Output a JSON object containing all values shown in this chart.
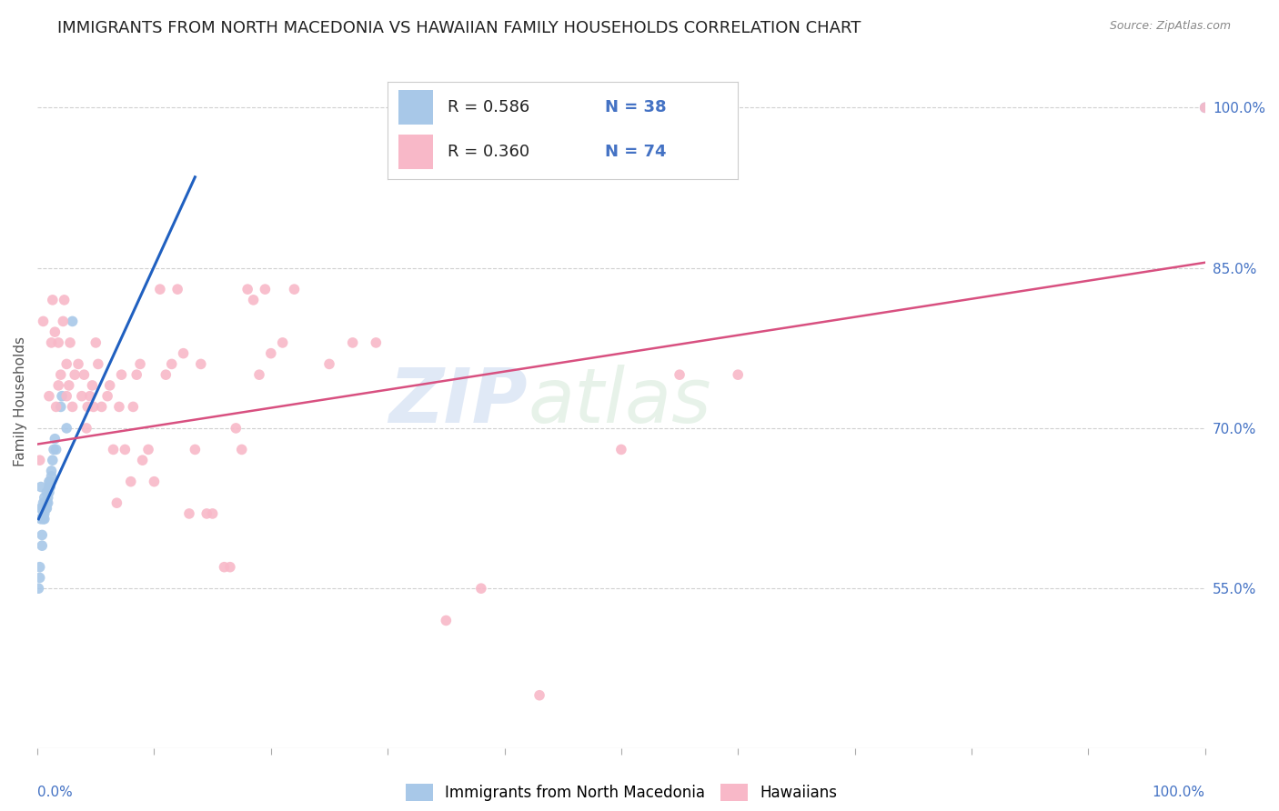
{
  "title": "IMMIGRANTS FROM NORTH MACEDONIA VS HAWAIIAN FAMILY HOUSEHOLDS CORRELATION CHART",
  "source": "Source: ZipAtlas.com",
  "ylabel": "Family Households",
  "ylabel_right_labels": [
    "100.0%",
    "85.0%",
    "70.0%",
    "55.0%"
  ],
  "ylabel_right_positions": [
    1.0,
    0.85,
    0.7,
    0.55
  ],
  "watermark_zip": "ZIP",
  "watermark_atlas": "atlas",
  "legend_blue_R": "0.586",
  "legend_blue_N": "38",
  "legend_pink_R": "0.360",
  "legend_pink_N": "74",
  "legend_label_blue": "Immigrants from North Macedonia",
  "legend_label_pink": "Hawaiians",
  "blue_scatter_color": "#a8c8e8",
  "blue_line_color": "#2060c0",
  "pink_scatter_color": "#f8b8c8",
  "pink_line_color": "#d85080",
  "text_color_blue": "#4472c4",
  "text_color_dark": "#222222",
  "grid_color_h": "#d0d0d0",
  "background_color": "#ffffff",
  "blue_scatter_x": [
    0.001,
    0.002,
    0.002,
    0.003,
    0.003,
    0.003,
    0.004,
    0.004,
    0.005,
    0.005,
    0.005,
    0.005,
    0.006,
    0.006,
    0.006,
    0.007,
    0.007,
    0.008,
    0.008,
    0.008,
    0.009,
    0.009,
    0.01,
    0.01,
    0.01,
    0.011,
    0.011,
    0.012,
    0.012,
    0.013,
    0.014,
    0.015,
    0.016,
    0.02,
    0.021,
    0.025,
    0.03,
    1.0
  ],
  "blue_scatter_y": [
    0.55,
    0.56,
    0.57,
    0.615,
    0.625,
    0.645,
    0.59,
    0.6,
    0.615,
    0.62,
    0.625,
    0.63,
    0.615,
    0.62,
    0.635,
    0.625,
    0.63,
    0.625,
    0.63,
    0.64,
    0.63,
    0.635,
    0.64,
    0.645,
    0.65,
    0.645,
    0.65,
    0.655,
    0.66,
    0.67,
    0.68,
    0.69,
    0.68,
    0.72,
    0.73,
    0.7,
    0.8,
    1.0
  ],
  "pink_scatter_x": [
    0.002,
    0.005,
    0.01,
    0.012,
    0.013,
    0.015,
    0.016,
    0.018,
    0.018,
    0.02,
    0.022,
    0.023,
    0.025,
    0.025,
    0.027,
    0.028,
    0.03,
    0.032,
    0.035,
    0.038,
    0.04,
    0.042,
    0.043,
    0.045,
    0.047,
    0.048,
    0.05,
    0.052,
    0.055,
    0.06,
    0.062,
    0.065,
    0.068,
    0.07,
    0.072,
    0.075,
    0.08,
    0.082,
    0.085,
    0.088,
    0.09,
    0.095,
    0.1,
    0.105,
    0.11,
    0.115,
    0.12,
    0.125,
    0.13,
    0.135,
    0.14,
    0.145,
    0.15,
    0.16,
    0.165,
    0.17,
    0.175,
    0.18,
    0.185,
    0.19,
    0.195,
    0.2,
    0.21,
    0.22,
    0.25,
    0.27,
    0.29,
    0.35,
    0.38,
    0.43,
    0.5,
    0.55,
    0.6,
    1.0
  ],
  "pink_scatter_y": [
    0.67,
    0.8,
    0.73,
    0.78,
    0.82,
    0.79,
    0.72,
    0.74,
    0.78,
    0.75,
    0.8,
    0.82,
    0.73,
    0.76,
    0.74,
    0.78,
    0.72,
    0.75,
    0.76,
    0.73,
    0.75,
    0.7,
    0.72,
    0.73,
    0.74,
    0.72,
    0.78,
    0.76,
    0.72,
    0.73,
    0.74,
    0.68,
    0.63,
    0.72,
    0.75,
    0.68,
    0.65,
    0.72,
    0.75,
    0.76,
    0.67,
    0.68,
    0.65,
    0.83,
    0.75,
    0.76,
    0.83,
    0.77,
    0.62,
    0.68,
    0.76,
    0.62,
    0.62,
    0.57,
    0.57,
    0.7,
    0.68,
    0.83,
    0.82,
    0.75,
    0.83,
    0.77,
    0.78,
    0.83,
    0.76,
    0.78,
    0.78,
    0.52,
    0.55,
    0.45,
    0.68,
    0.75,
    0.75,
    1.0
  ],
  "blue_trend_x": [
    0.001,
    0.135
  ],
  "blue_trend_y": [
    0.615,
    0.935
  ],
  "pink_trend_x": [
    0.0,
    1.0
  ],
  "pink_trend_y": [
    0.685,
    0.855
  ],
  "xlim": [
    0.0,
    1.0
  ],
  "ylim": [
    0.4,
    1.05
  ],
  "title_fontsize": 13,
  "source_fontsize": 9,
  "legend_fontsize": 12,
  "tick_fontsize": 11
}
